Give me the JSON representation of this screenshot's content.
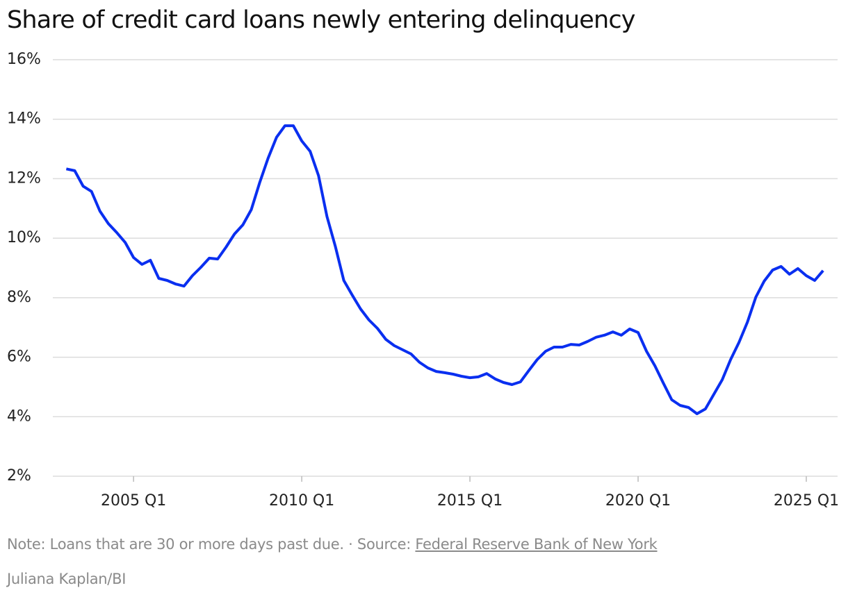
{
  "chart_data": {
    "type": "line",
    "title": "Share of credit card loans newly entering delinquency",
    "color": "#0a2ff0",
    "x": [
      2003,
      2003.25,
      2003.5,
      2003.75,
      2004,
      2004.25,
      2004.5,
      2004.75,
      2005,
      2005.25,
      2005.5,
      2005.75,
      2006,
      2006.25,
      2006.5,
      2006.75,
      2007,
      2007.25,
      2007.5,
      2007.75,
      2008,
      2008.25,
      2008.5,
      2008.75,
      2009,
      2009.25,
      2009.5,
      2009.75,
      2010,
      2010.25,
      2010.5,
      2010.75,
      2011,
      2011.25,
      2011.5,
      2011.75,
      2012,
      2012.25,
      2012.5,
      2012.75,
      2013,
      2013.25,
      2013.5,
      2013.75,
      2014,
      2014.25,
      2014.5,
      2014.75,
      2015,
      2015.25,
      2015.5,
      2015.75,
      2016,
      2016.25,
      2016.5,
      2016.75,
      2017,
      2017.25,
      2017.5,
      2017.75,
      2018,
      2018.25,
      2018.5,
      2018.75,
      2019,
      2019.25,
      2019.5,
      2019.75,
      2020,
      2020.25,
      2020.5,
      2020.75,
      2021,
      2021.25,
      2021.5,
      2021.75,
      2022,
      2022.25,
      2022.5,
      2022.75,
      2023,
      2023.25,
      2023.5,
      2023.75,
      2024,
      2024.25,
      2024.5,
      2024.75,
      2025,
      2025.25,
      2025.5
    ],
    "values": [
      12.33,
      12.27,
      11.75,
      11.57,
      10.91,
      10.49,
      10.19,
      9.86,
      9.35,
      9.12,
      9.26,
      8.65,
      8.58,
      8.46,
      8.39,
      8.74,
      9.02,
      9.33,
      9.3,
      9.7,
      10.14,
      10.45,
      10.96,
      11.87,
      12.69,
      13.39,
      13.78,
      13.78,
      13.27,
      12.92,
      12.1,
      10.73,
      9.72,
      8.58,
      8.09,
      7.62,
      7.25,
      6.97,
      6.6,
      6.39,
      6.25,
      6.11,
      5.83,
      5.64,
      5.52,
      5.48,
      5.43,
      5.36,
      5.31,
      5.34,
      5.45,
      5.27,
      5.15,
      5.08,
      5.17,
      5.55,
      5.92,
      6.2,
      6.34,
      6.34,
      6.43,
      6.41,
      6.53,
      6.67,
      6.74,
      6.85,
      6.74,
      6.95,
      6.83,
      6.2,
      5.71,
      5.13,
      4.57,
      4.38,
      4.31,
      4.1,
      4.26,
      4.75,
      5.24,
      5.92,
      6.5,
      7.18,
      8.02,
      8.56,
      8.93,
      9.05,
      8.79,
      8.98,
      8.74,
      8.58,
      8.91
    ],
    "xlim": [
      2002.6,
      2025.93
    ],
    "xticks": [
      {
        "value": 2005,
        "label": "2005 Q1"
      },
      {
        "value": 2010,
        "label": "2010 Q1"
      },
      {
        "value": 2015,
        "label": "2015 Q1"
      },
      {
        "value": 2020,
        "label": "2020 Q1"
      },
      {
        "value": 2025,
        "label": "2025 Q1"
      }
    ],
    "ylim": [
      2,
      16
    ],
    "yticks": [
      {
        "value": 2,
        "label": "2%"
      },
      {
        "value": 4,
        "label": "4%"
      },
      {
        "value": 6,
        "label": "6%"
      },
      {
        "value": 8,
        "label": "8%"
      },
      {
        "value": 10,
        "label": "10%"
      },
      {
        "value": 12,
        "label": "12%"
      },
      {
        "value": 14,
        "label": "14%"
      },
      {
        "value": 16,
        "label": "16%"
      }
    ],
    "grid": true,
    "note": "Note: Loans that are 30 or more days past due.",
    "separator": "·",
    "source_prefix": "Source:",
    "source_link": "Federal Reserve Bank of New York",
    "credit": "Juliana Kaplan/BI"
  }
}
